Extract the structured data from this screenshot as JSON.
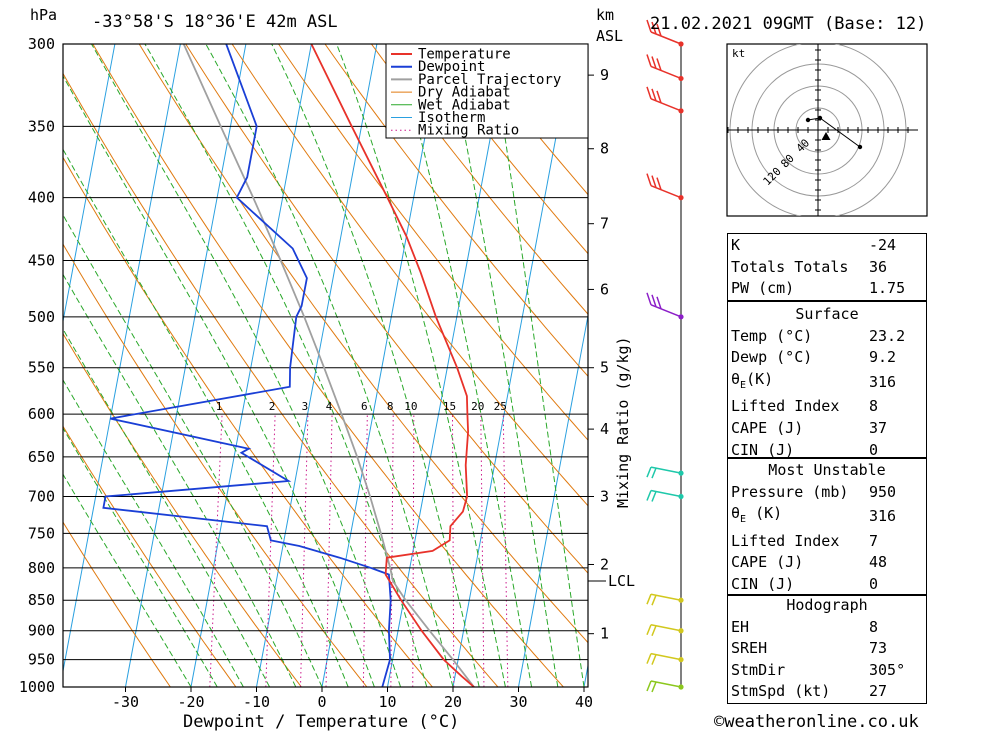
{
  "header": {
    "hpa_unit": "hPa",
    "location": "-33°58'S  18°36'E  42m  ASL",
    "km_unit": "km",
    "asl_label": "ASL",
    "datetime": "21.02.2021  09GMT  (Base: 12)"
  },
  "footer": {
    "credit": "©weatheronline.co.uk"
  },
  "colors": {
    "temperature": "#e8322a",
    "dewpoint": "#1a3fd6",
    "parcel": "#a0a0a0",
    "dry_adiabat": "#e07a10",
    "wet_adiabat": "#2aa82a",
    "isotherm": "#2aa0e0",
    "mixing_ratio": "#cc1a8c"
  },
  "chart_data": {
    "type": "line",
    "title": "-33°58'S 18°36'E 42m ASL",
    "xlabel": "Dewpoint / Temperature (°C)",
    "ylabel": "hPa",
    "xlim": [
      -40,
      40
    ],
    "ylim": [
      1000,
      300
    ],
    "x_ticks": [
      "-30",
      "-20",
      "-10",
      "0",
      "10",
      "20",
      "30",
      "40"
    ],
    "pressure_levels": [
      "300",
      "350",
      "400",
      "450",
      "500",
      "550",
      "600",
      "650",
      "700",
      "750",
      "800",
      "850",
      "900",
      "950",
      "1000"
    ],
    "km_levels": [
      {
        "label": "1",
        "p": 905
      },
      {
        "label": "2",
        "p": 795
      },
      {
        "label": "3",
        "p": 700
      },
      {
        "label": "4",
        "p": 617
      },
      {
        "label": "5",
        "p": 550
      },
      {
        "label": "6",
        "p": 475
      },
      {
        "label": "7",
        "p": 420
      },
      {
        "label": "8",
        "p": 365
      },
      {
        "label": "9",
        "p": 318
      }
    ],
    "lcl": {
      "label": "LCL",
      "p": 820
    },
    "mixing_ratio_label": "Mixing Ratio (g/kg)",
    "mixing_ratios": [
      "1",
      "2",
      "3",
      "4",
      "6",
      "8",
      "10",
      "15",
      "20",
      "25"
    ],
    "legend": [
      "Temperature",
      "Dewpoint",
      "Parcel Trajectory",
      "Dry Adiabat",
      "Wet Adiabat",
      "Isotherm",
      "Mixing Ratio"
    ],
    "series": [
      {
        "name": "Temperature",
        "points": [
          [
            1000,
            23.2
          ],
          [
            980,
            21
          ],
          [
            950,
            17.8
          ],
          [
            900,
            13.6
          ],
          [
            850,
            9.6
          ],
          [
            810,
            6.5
          ],
          [
            785,
            6.2
          ],
          [
            775,
            13
          ],
          [
            760,
            15.3
          ],
          [
            740,
            15
          ],
          [
            720,
            16.5
          ],
          [
            700,
            16.7
          ],
          [
            660,
            15.6
          ],
          [
            620,
            15
          ],
          [
            600,
            14.4
          ],
          [
            580,
            13.8
          ],
          [
            550,
            11.5
          ],
          [
            500,
            6.8
          ],
          [
            460,
            3.2
          ],
          [
            430,
            0
          ],
          [
            400,
            -4
          ],
          [
            350,
            -11.5
          ],
          [
            300,
            -20
          ]
        ]
      },
      {
        "name": "Dewpoint",
        "points": [
          [
            1000,
            9.2
          ],
          [
            950,
            9.6
          ],
          [
            900,
            8.6
          ],
          [
            850,
            8
          ],
          [
            810,
            7
          ],
          [
            800,
            4
          ],
          [
            785,
            -1
          ],
          [
            768,
            -7.5
          ],
          [
            760,
            -12
          ],
          [
            740,
            -13
          ],
          [
            715,
            -38.5
          ],
          [
            700,
            -38.5
          ],
          [
            680,
            -11
          ],
          [
            645,
            -19
          ],
          [
            640,
            -18
          ],
          [
            605,
            -40
          ],
          [
            570,
            -13.5
          ],
          [
            550,
            -14
          ],
          [
            500,
            -14.5
          ],
          [
            490,
            -14
          ],
          [
            465,
            -14
          ],
          [
            440,
            -17
          ],
          [
            400,
            -27
          ],
          [
            385,
            -26
          ],
          [
            350,
            -26
          ],
          [
            300,
            -33
          ]
        ]
      },
      {
        "name": "Parcel Trajectory",
        "points": [
          [
            1000,
            23.2
          ],
          [
            950,
            19.2
          ],
          [
            900,
            14.8
          ],
          [
            850,
            10.3
          ],
          [
            820,
            7.8
          ],
          [
            800,
            7
          ],
          [
            750,
            4.6
          ],
          [
            700,
            1.9
          ],
          [
            650,
            -1.2
          ],
          [
            600,
            -4.8
          ],
          [
            550,
            -8.8
          ],
          [
            500,
            -13.3
          ],
          [
            450,
            -18.5
          ],
          [
            400,
            -24.5
          ],
          [
            350,
            -31.5
          ],
          [
            300,
            -39.5
          ]
        ]
      }
    ]
  },
  "wind_barbs": [
    {
      "p": 1000,
      "color": "#8cc81e"
    },
    {
      "p": 950,
      "color": "#d2c81e"
    },
    {
      "p": 900,
      "color": "#d2c81e"
    },
    {
      "p": 850,
      "color": "#d2c81e"
    },
    {
      "p": 700,
      "color": "#1ec8aa"
    },
    {
      "p": 670,
      "color": "#1ec8aa"
    },
    {
      "p": 500,
      "color": "#8c1ec8"
    },
    {
      "p": 400,
      "color": "#e8322a"
    },
    {
      "p": 340,
      "color": "#e8322a"
    },
    {
      "p": 320,
      "color": "#e8322a"
    },
    {
      "p": 300,
      "color": "#e8322a"
    }
  ],
  "hodograph": {
    "unit": "kt",
    "rings": [
      "40",
      "80",
      "120"
    ],
    "trace": [
      [
        -0.1,
        0.1
      ],
      [
        0.02,
        0.12
      ],
      [
        0.42,
        -0.17
      ]
    ],
    "storm": [
      0.08,
      -0.07
    ]
  },
  "stats": {
    "k_label": "K",
    "k_value": "-24",
    "tt_label": "Totals Totals",
    "tt_value": "36",
    "pw_label": "PW (cm)",
    "pw_value": "1.75",
    "surface_title": "Surface",
    "s_temp_label": "Temp (°C)",
    "s_temp_value": "23.2",
    "s_dewp_label": "Dewp (°C)",
    "s_dewp_value": "9.2",
    "s_theta_label": "θ",
    "s_theta_sub": "E",
    "s_theta_unit": "(K)",
    "s_theta_value": "316",
    "s_li_label": "Lifted Index",
    "s_li_value": "8",
    "s_cape_label": "CAPE (J)",
    "s_cape_value": "37",
    "s_cin_label": "CIN (J)",
    "s_cin_value": "0",
    "mu_title": "Most Unstable",
    "mu_pressure_label": "Pressure (mb)",
    "mu_pressure_value": "950",
    "mu_theta_label": "θ",
    "mu_theta_sub": "E",
    "mu_theta_unit": " (K)",
    "mu_theta_value": "316",
    "mu_li_label": "Lifted Index",
    "mu_li_value": "7",
    "mu_cape_label": "CAPE (J)",
    "mu_cape_value": "48",
    "mu_cin_label": "CIN (J)",
    "mu_cin_value": "0",
    "hodo_title": "Hodograph",
    "eh_label": "EH",
    "eh_value": "8",
    "sreh_label": "SREH",
    "sreh_value": "73",
    "stmdir_label": "StmDir",
    "stmdir_value": "305°",
    "stmspd_label": "StmSpd (kt)",
    "stmspd_value": "27"
  }
}
